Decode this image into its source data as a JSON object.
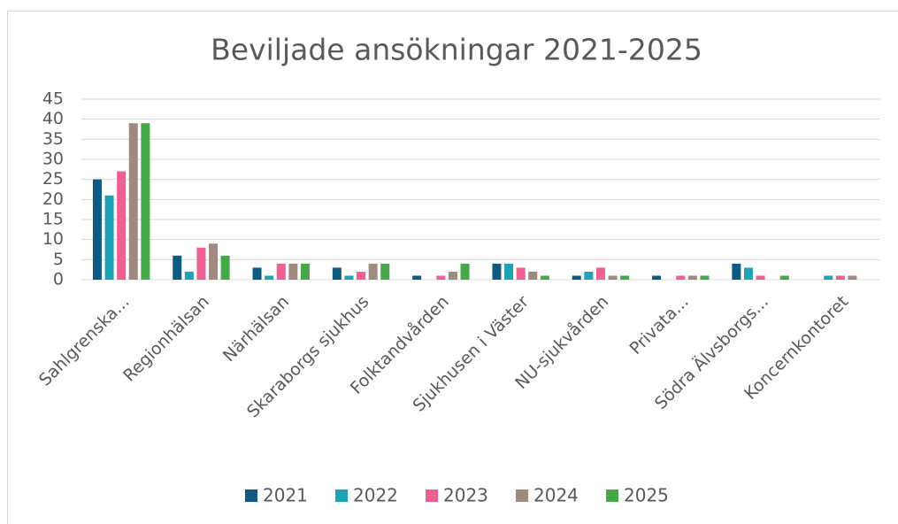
{
  "chart_data": {
    "type": "bar",
    "title": "Beviljade ansökningar 2021-2025",
    "categories": [
      "Sahlgrenska...",
      "Regionhälsan",
      "Närhälsan",
      "Skaraborgs sjukhus",
      "Folktandvården",
      "Sjukhusen i Väster",
      "NU-sjukvården",
      "Privata...",
      "Södra Älvsborgs...",
      "Koncernkontoret"
    ],
    "series": [
      {
        "name": "2021",
        "color": "#0f5a83",
        "values": [
          25,
          6,
          3,
          3,
          1,
          4,
          1,
          1,
          4,
          0
        ]
      },
      {
        "name": "2022",
        "color": "#1ea2b6",
        "values": [
          21,
          2,
          1,
          1,
          0,
          4,
          2,
          0,
          3,
          1
        ]
      },
      {
        "name": "2023",
        "color": "#ef5f93",
        "values": [
          27,
          8,
          4,
          2,
          1,
          3,
          3,
          1,
          1,
          1
        ]
      },
      {
        "name": "2024",
        "color": "#a08a80",
        "values": [
          39,
          9,
          4,
          4,
          2,
          2,
          1,
          1,
          0,
          1
        ]
      },
      {
        "name": "2025",
        "color": "#47a84a",
        "values": [
          39,
          6,
          4,
          4,
          4,
          1,
          1,
          1,
          1,
          0
        ]
      }
    ],
    "ylim": [
      0,
      45
    ],
    "yticks": [
      0,
      5,
      10,
      15,
      20,
      25,
      30,
      35,
      40,
      45
    ],
    "grid": true,
    "legend": "bottom"
  }
}
